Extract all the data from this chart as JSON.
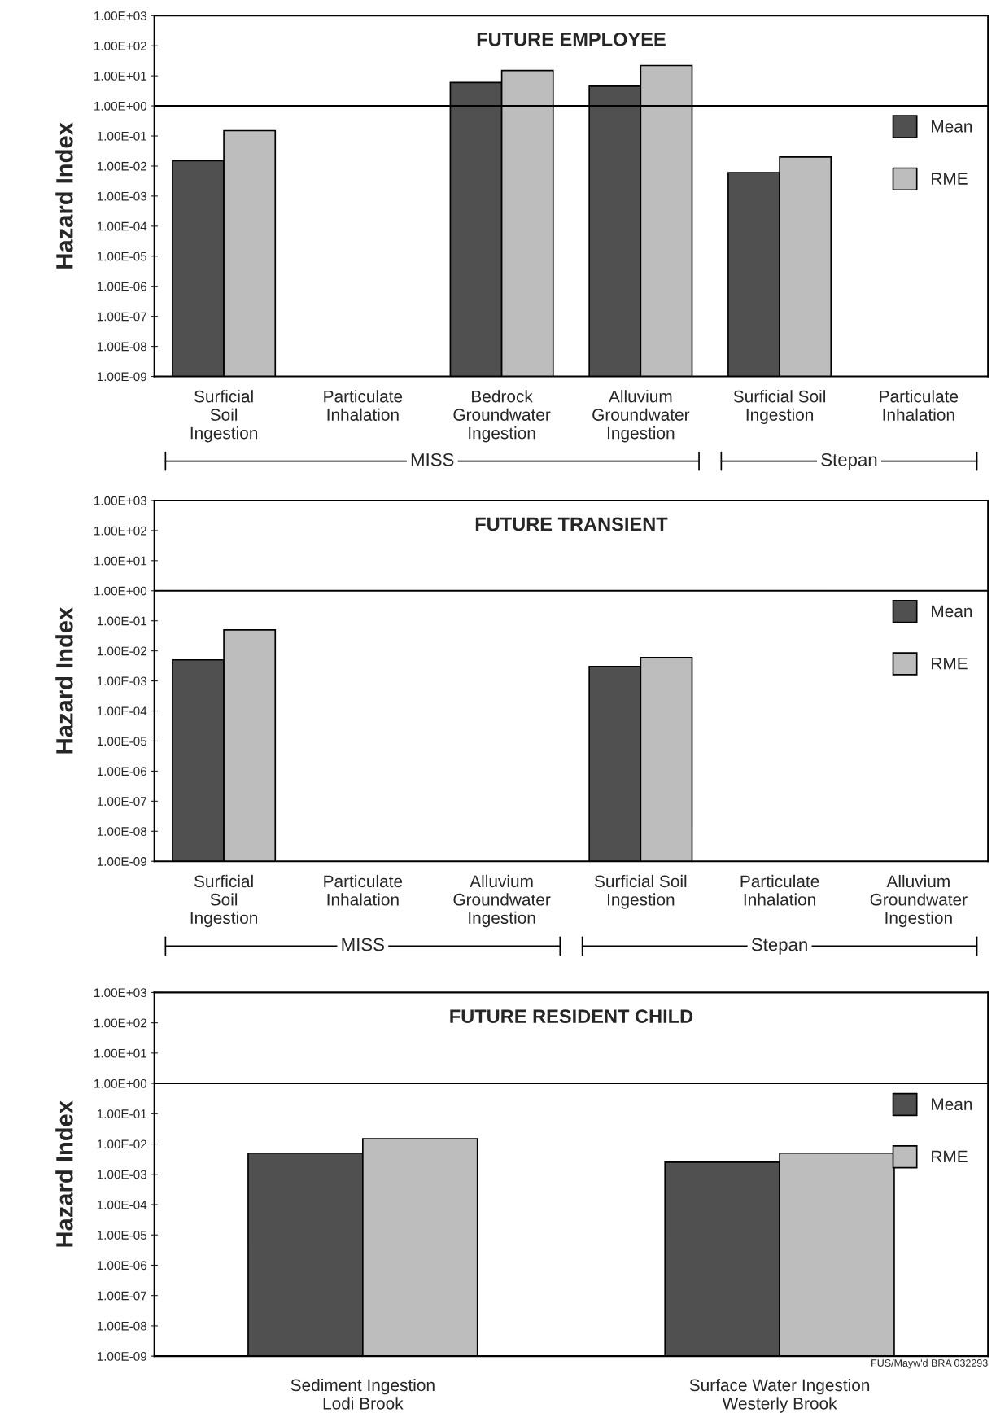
{
  "chart_data": [
    {
      "type": "bar",
      "title": "FUTURE EMPLOYEE",
      "ylabel": "Hazard Index",
      "categories": [
        "Surficial\nSoil\nIngestion",
        "Particulate\nInhalation",
        "Bedrock\nGroundwater\nIngestion",
        "Alluvium\nGroundwater\nIngestion",
        "Surficial Soil\nIngestion",
        "Particulate\nInhalation"
      ],
      "series": [
        {
          "name": "Mean",
          "color": "#505050",
          "values": [
            0.015,
            null,
            6,
            4.5,
            0.006,
            null
          ]
        },
        {
          "name": "RME",
          "color": "#bdbdbd",
          "values": [
            0.15,
            null,
            15,
            22,
            0.02,
            null
          ]
        }
      ],
      "log": true,
      "ylim": [
        1e-09,
        1000
      ],
      "yticks": [
        {
          "value": 1e-09,
          "label": "1.00E-09"
        },
        {
          "value": 1e-08,
          "label": "1.00E-08"
        },
        {
          "value": 1e-07,
          "label": "1.00E-07"
        },
        {
          "value": 1e-06,
          "label": "1.00E-06"
        },
        {
          "value": 1e-05,
          "label": "1.00E-05"
        },
        {
          "value": 0.0001,
          "label": "1.00E-04"
        },
        {
          "value": 0.001,
          "label": "1.00E-03"
        },
        {
          "value": 0.01,
          "label": "1.00E-02"
        },
        {
          "value": 0.1,
          "label": "1.00E-01"
        },
        {
          "value": 1,
          "label": "1.00E+00"
        },
        {
          "value": 10,
          "label": "1.00E+01"
        },
        {
          "value": 100,
          "label": "1.00E+02"
        },
        {
          "value": 1000,
          "label": "1.00E+03"
        }
      ],
      "ref_lines": [
        {
          "axis": "y",
          "value": 1,
          "color": "#000000"
        }
      ],
      "annotations": [
        "MISS",
        "Stepan"
      ],
      "legend": "right",
      "grid": false
    },
    {
      "type": "bar",
      "title": "FUTURE TRANSIENT",
      "ylabel": "Hazard Index",
      "categories": [
        "Surficial\nSoil\nIngestion",
        "Particulate\nInhalation",
        "Alluvium\nGroundwater\nIngestion",
        "Surficial Soil\nIngestion",
        "Particulate\nInhalation",
        "Alluvium\nGroundwater\nIngestion"
      ],
      "series": [
        {
          "name": "Mean",
          "color": "#505050",
          "values": [
            0.005,
            null,
            null,
            0.003,
            null,
            null
          ]
        },
        {
          "name": "RME",
          "color": "#bdbdbd",
          "values": [
            0.05,
            null,
            null,
            0.006,
            null,
            null
          ]
        }
      ],
      "log": true,
      "ylim": [
        1e-09,
        1000
      ],
      "yticks": [
        {
          "value": 1e-09,
          "label": "1.00E-09"
        },
        {
          "value": 1e-08,
          "label": "1.00E-08"
        },
        {
          "value": 1e-07,
          "label": "1.00E-07"
        },
        {
          "value": 1e-06,
          "label": "1.00E-06"
        },
        {
          "value": 1e-05,
          "label": "1.00E-05"
        },
        {
          "value": 0.0001,
          "label": "1.00E-04"
        },
        {
          "value": 0.001,
          "label": "1.00E-03"
        },
        {
          "value": 0.01,
          "label": "1.00E-02"
        },
        {
          "value": 0.1,
          "label": "1.00E-01"
        },
        {
          "value": 1,
          "label": "1.00E+00"
        },
        {
          "value": 10,
          "label": "1.00E+01"
        },
        {
          "value": 100,
          "label": "1.00E+02"
        },
        {
          "value": 1000,
          "label": "1.00E+03"
        }
      ],
      "ref_lines": [
        {
          "axis": "y",
          "value": 1,
          "color": "#000000"
        }
      ],
      "annotations": [
        "MISS",
        "Stepan"
      ],
      "legend": "right",
      "grid": false
    },
    {
      "type": "bar",
      "title": "FUTURE RESIDENT CHILD",
      "ylabel": "Hazard Index",
      "categories": [
        "Sediment Ingestion\nLodi Brook",
        "Surface Water Ingestion\nWesterly Brook"
      ],
      "series": [
        {
          "name": "Mean",
          "color": "#505050",
          "values": [
            0.005,
            0.0025
          ]
        },
        {
          "name": "RME",
          "color": "#bdbdbd",
          "values": [
            0.015,
            0.005
          ]
        }
      ],
      "log": true,
      "ylim": [
        1e-09,
        1000
      ],
      "yticks": [
        {
          "value": 1e-09,
          "label": "1.00E-09"
        },
        {
          "value": 1e-08,
          "label": "1.00E-08"
        },
        {
          "value": 1e-07,
          "label": "1.00E-07"
        },
        {
          "value": 1e-06,
          "label": "1.00E-06"
        },
        {
          "value": 1e-05,
          "label": "1.00E-05"
        },
        {
          "value": 0.0001,
          "label": "1.00E-04"
        },
        {
          "value": 0.001,
          "label": "1.00E-03"
        },
        {
          "value": 0.01,
          "label": "1.00E-02"
        },
        {
          "value": 0.1,
          "label": "1.00E-01"
        },
        {
          "value": 1,
          "label": "1.00E+00"
        },
        {
          "value": 10,
          "label": "1.00E+01"
        },
        {
          "value": 100,
          "label": "1.00E+02"
        },
        {
          "value": 1000,
          "label": "1.00E+03"
        }
      ],
      "ref_lines": [
        {
          "axis": "y",
          "value": 1,
          "color": "#000000"
        }
      ],
      "annotations": [
        "FUS/Mayw'd BRA 032293"
      ],
      "legend": "right",
      "grid": false
    }
  ]
}
